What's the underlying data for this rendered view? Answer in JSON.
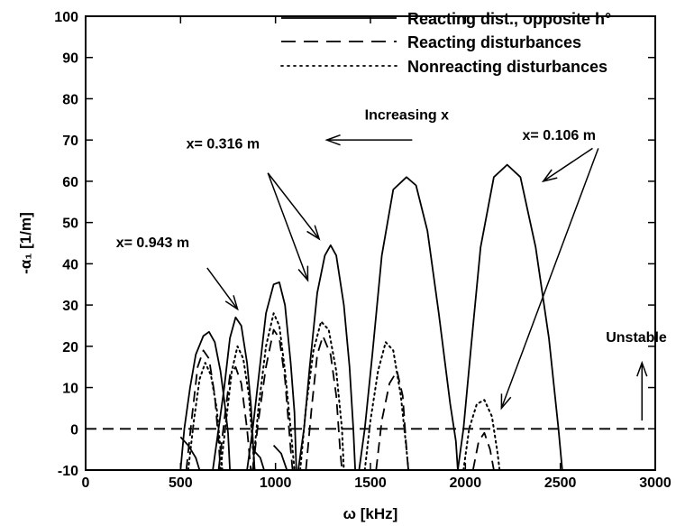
{
  "chart_data": {
    "type": "line",
    "xlabel": "ω [kHz]",
    "ylabel": "-α₁ [1/m]",
    "xlim": [
      0,
      3000
    ],
    "ylim": [
      -10,
      100
    ],
    "x_ticks": [
      0,
      500,
      1000,
      1500,
      2000,
      2500,
      3000
    ],
    "y_ticks": [
      -10,
      0,
      10,
      20,
      30,
      40,
      50,
      60,
      70,
      80,
      90,
      100
    ],
    "grid": false,
    "legend_position": "top-right",
    "legend": [
      {
        "label": "Reacting dist., opposite h°",
        "style": "solid"
      },
      {
        "label": "Reacting disturbances",
        "style": "dashed"
      },
      {
        "label": "Nonreacting disturbances",
        "style": "dotted"
      }
    ],
    "series": [
      {
        "name": "Reacting dist., opposite h°",
        "style": "solid",
        "segments": [
          [
            [
              500,
              -10
            ],
            [
              520,
              0
            ],
            [
              550,
              10
            ],
            [
              580,
              18
            ],
            [
              620,
              22.5
            ],
            [
              650,
              23.5
            ],
            [
              680,
              21
            ],
            [
              710,
              14
            ],
            [
              730,
              7
            ],
            [
              750,
              -1
            ],
            [
              760,
              -10
            ]
          ],
          [
            [
              670,
              -10
            ],
            [
              700,
              0
            ],
            [
              730,
              10
            ],
            [
              760,
              22
            ],
            [
              790,
              27
            ],
            [
              820,
              25
            ],
            [
              850,
              16
            ],
            [
              870,
              6
            ],
            [
              890,
              -10
            ]
          ],
          [
            [
              850,
              -10
            ],
            [
              880,
              0
            ],
            [
              910,
              12
            ],
            [
              950,
              28
            ],
            [
              990,
              35
            ],
            [
              1020,
              35.5
            ],
            [
              1050,
              30
            ],
            [
              1080,
              16
            ],
            [
              1100,
              4
            ],
            [
              1110,
              -10
            ]
          ],
          [
            [
              1120,
              -10
            ],
            [
              1150,
              0
            ],
            [
              1180,
              15
            ],
            [
              1220,
              33
            ],
            [
              1260,
              42
            ],
            [
              1290,
              44.5
            ],
            [
              1320,
              42
            ],
            [
              1360,
              30
            ],
            [
              1390,
              15
            ],
            [
              1410,
              0
            ],
            [
              1420,
              -10
            ]
          ],
          [
            [
              1440,
              -10
            ],
            [
              1470,
              0
            ],
            [
              1510,
              18
            ],
            [
              1560,
              42
            ],
            [
              1620,
              58
            ],
            [
              1690,
              61
            ],
            [
              1740,
              59
            ],
            [
              1800,
              48
            ],
            [
              1860,
              28
            ],
            [
              1920,
              6
            ],
            [
              1950,
              -3
            ],
            [
              1960,
              -10
            ]
          ],
          [
            [
              1960,
              -10
            ],
            [
              1990,
              0
            ],
            [
              2030,
              20
            ],
            [
              2080,
              44
            ],
            [
              2150,
              61
            ],
            [
              2220,
              64
            ],
            [
              2290,
              61
            ],
            [
              2370,
              44
            ],
            [
              2440,
              22
            ],
            [
              2490,
              0
            ],
            [
              2510,
              -10
            ]
          ],
          [
            [
              500,
              -2
            ],
            [
              540,
              -4
            ],
            [
              580,
              -7
            ],
            [
              600,
              -10
            ]
          ],
          [
            [
              880,
              -5
            ],
            [
              920,
              -7
            ],
            [
              940,
              -10
            ]
          ],
          [
            [
              990,
              -4
            ],
            [
              1030,
              -6
            ],
            [
              1060,
              -10
            ]
          ]
        ]
      },
      {
        "name": "Reacting disturbances",
        "style": "dashed",
        "segments": [
          [
            [
              530,
              -10
            ],
            [
              560,
              3
            ],
            [
              590,
              15
            ],
            [
              620,
              19
            ],
            [
              650,
              17
            ],
            [
              680,
              8
            ],
            [
              700,
              -3
            ],
            [
              710,
              -10
            ]
          ],
          [
            [
              700,
              -10
            ],
            [
              730,
              2
            ],
            [
              760,
              13
            ],
            [
              790,
              15
            ],
            [
              820,
              11
            ],
            [
              850,
              0
            ],
            [
              870,
              -10
            ]
          ],
          [
            [
              880,
              -10
            ],
            [
              910,
              2
            ],
            [
              950,
              15
            ],
            [
              990,
              24
            ],
            [
              1020,
              22
            ],
            [
              1050,
              12
            ],
            [
              1080,
              -5
            ],
            [
              1090,
              -10
            ]
          ],
          [
            [
              1160,
              -10
            ],
            [
              1190,
              5
            ],
            [
              1220,
              18
            ],
            [
              1250,
              22.5
            ],
            [
              1290,
              18
            ],
            [
              1320,
              8
            ],
            [
              1340,
              -5
            ],
            [
              1350,
              -10
            ]
          ],
          [
            [
              1530,
              -10
            ],
            [
              1560,
              2
            ],
            [
              1600,
              11
            ],
            [
              1640,
              14
            ],
            [
              1670,
              8
            ],
            [
              1690,
              -5
            ],
            [
              1700,
              -10
            ]
          ],
          [
            [
              2040,
              -10
            ],
            [
              2070,
              -3
            ],
            [
              2100,
              -1
            ],
            [
              2130,
              -5
            ],
            [
              2150,
              -10
            ]
          ],
          [
            [
              0,
              0
            ],
            [
              2950,
              0
            ]
          ]
        ]
      },
      {
        "name": "Nonreacting disturbances",
        "style": "dotted",
        "segments": [
          [
            [
              540,
              -10
            ],
            [
              570,
              2
            ],
            [
              600,
              12
            ],
            [
              630,
              16
            ],
            [
              660,
              13
            ],
            [
              690,
              5
            ],
            [
              710,
              -5
            ],
            [
              720,
              -10
            ]
          ],
          [
            [
              710,
              -10
            ],
            [
              740,
              2
            ],
            [
              770,
              14
            ],
            [
              800,
              20
            ],
            [
              830,
              17
            ],
            [
              860,
              8
            ],
            [
              880,
              -4
            ],
            [
              890,
              -10
            ]
          ],
          [
            [
              880,
              -10
            ],
            [
              910,
              5
            ],
            [
              950,
              20
            ],
            [
              990,
              28
            ],
            [
              1020,
              25
            ],
            [
              1050,
              14
            ],
            [
              1080,
              0
            ],
            [
              1100,
              -10
            ]
          ],
          [
            [
              1130,
              -10
            ],
            [
              1160,
              5
            ],
            [
              1200,
              19
            ],
            [
              1240,
              26
            ],
            [
              1280,
              24
            ],
            [
              1320,
              14
            ],
            [
              1350,
              0
            ],
            [
              1360,
              -10
            ]
          ],
          [
            [
              1470,
              -10
            ],
            [
              1500,
              2
            ],
            [
              1540,
              14
            ],
            [
              1580,
              21
            ],
            [
              1620,
              19
            ],
            [
              1660,
              8
            ],
            [
              1690,
              -5
            ],
            [
              1700,
              -10
            ]
          ],
          [
            [
              1990,
              -10
            ],
            [
              2020,
              0
            ],
            [
              2060,
              6
            ],
            [
              2100,
              7
            ],
            [
              2140,
              3
            ],
            [
              2170,
              -6
            ],
            [
              2180,
              -10
            ]
          ]
        ]
      }
    ],
    "annotations": [
      {
        "text": "x= 0.106 m",
        "x": 2300,
        "y": 70
      },
      {
        "text": "x= 0.316 m",
        "x": 530,
        "y": 68
      },
      {
        "text": "x= 0.943 m",
        "x": 160,
        "y": 44
      },
      {
        "text": "Increasing x",
        "x": 1470,
        "y": 75
      },
      {
        "text": "Unstable",
        "x": 2740,
        "y": 21
      }
    ],
    "arrows": [
      {
        "name": "increasing-x-arrow",
        "from": [
          1720,
          70
        ],
        "to": [
          1270,
          70
        ]
      },
      {
        "name": "arrow-0106-to-2220",
        "from": [
          2670,
          68
        ],
        "to": [
          2410,
          60
        ]
      },
      {
        "name": "arrow-0106-to-2100",
        "from": [
          2700,
          68
        ],
        "to": [
          2190,
          5
        ]
      },
      {
        "name": "arrow-0316-to-1290",
        "from": [
          960,
          62
        ],
        "to": [
          1230,
          46
        ]
      },
      {
        "name": "arrow-0316-to-1220",
        "from": [
          960,
          62
        ],
        "to": [
          1170,
          36
        ]
      },
      {
        "name": "arrow-0943-to-650",
        "from": [
          640,
          39
        ],
        "to": [
          800,
          29
        ]
      },
      {
        "name": "unstable-arrow",
        "from": [
          2930,
          2
        ],
        "to": [
          2930,
          16
        ]
      }
    ]
  }
}
